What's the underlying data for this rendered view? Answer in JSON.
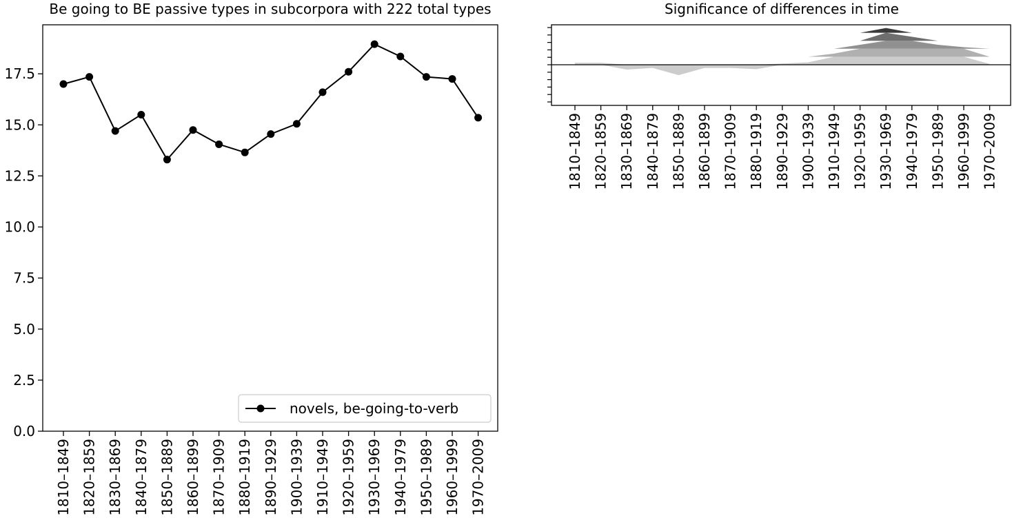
{
  "chart_data": [
    {
      "type": "line",
      "title": "Be going to BE passive types in subcorpora with 222 total types",
      "xlabel": "",
      "ylabel": "",
      "categories": [
        "1810–1849",
        "1820–1859",
        "1830–1869",
        "1840–1879",
        "1850–1889",
        "1860–1899",
        "1870–1909",
        "1880–1919",
        "1890–1929",
        "1900–1939",
        "1910–1949",
        "1920–1959",
        "1930–1969",
        "1940–1979",
        "1950–1989",
        "1960–1999",
        "1970–2009"
      ],
      "series": [
        {
          "name": "novels, be-going-to-verb",
          "values": [
            17.0,
            17.35,
            14.7,
            15.5,
            13.3,
            14.75,
            14.05,
            13.65,
            14.55,
            15.05,
            16.6,
            17.6,
            18.95,
            18.35,
            17.35,
            17.25,
            15.35
          ],
          "color": "#000000",
          "marker": "circle"
        }
      ],
      "ylim": [
        0,
        19.9
      ],
      "yticks": [
        "0.0",
        "2.5",
        "5.0",
        "7.5",
        "10.0",
        "12.5",
        "15.0",
        "17.5"
      ],
      "legend": "lower-right",
      "grid": false
    },
    {
      "type": "area",
      "title": "Significance of differences in time",
      "xlabel": "",
      "ylabel": "",
      "categories": [
        "1810–1849",
        "1820–1859",
        "1830–1869",
        "1840–1879",
        "1850–1889",
        "1860–1899",
        "1870–1909",
        "1880–1919",
        "1890–1929",
        "1900–1939",
        "1910–1949",
        "1920–1959",
        "1930–1969",
        "1940–1979",
        "1950–1989",
        "1960–1999",
        "1970–2009"
      ],
      "ylim": [
        -5,
        5
      ],
      "baseline": 0,
      "values": [
        0.5,
        0.5,
        -1.2,
        -0.8,
        -2.6,
        -0.8,
        -0.8,
        -1.1,
        0.3,
        0.6,
        2.8,
        5.0,
        9.2,
        7.0,
        5.0,
        4.4,
        0.2
      ],
      "bands": [
        {
          "level": 1,
          "color": "#cccccc"
        },
        {
          "level": 2,
          "color": "#b0b0b0"
        },
        {
          "level": 3,
          "color": "#919191"
        },
        {
          "level": 4,
          "color": "#6e6e6e"
        },
        {
          "level": 5,
          "color": "#3a3a3a"
        }
      ],
      "grid": false
    }
  ]
}
